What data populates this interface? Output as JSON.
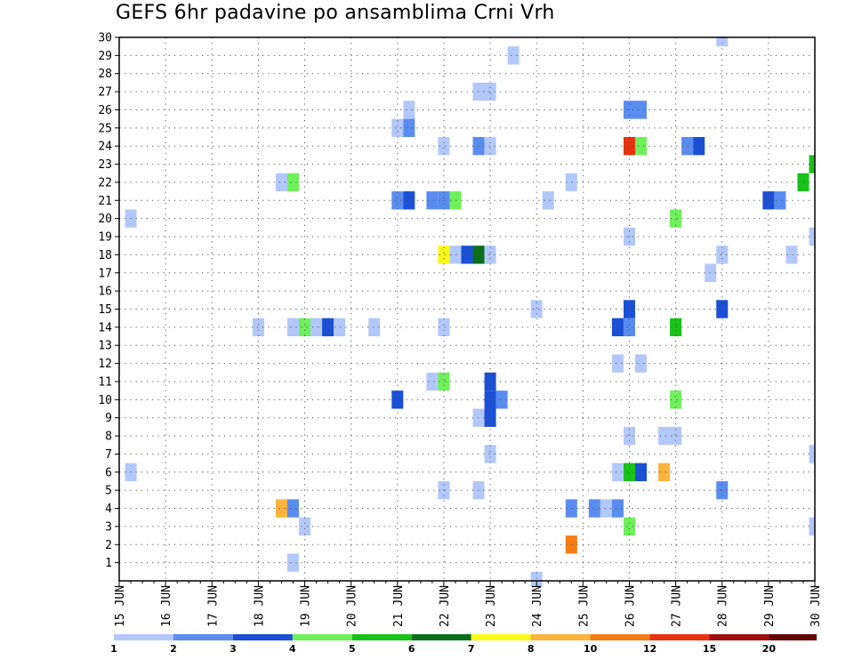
{
  "chart_data": {
    "type": "heatmap",
    "title": "GEFS 6hr padavine po ansamblima Crni Vrh",
    "xlabel": "",
    "ylabel": "",
    "x_tick_labels": [
      "15 JUN",
      "16 JUN",
      "17 JUN",
      "18 JUN",
      "19 JUN",
      "20 JUN",
      "21 JUN",
      "22 JUN",
      "23 JUN",
      "24 JUN",
      "25 JUN",
      "26 JUN",
      "27 JUN",
      "28 JUN",
      "29 JUN",
      "30 JUN"
    ],
    "y_tick_labels": [
      "1",
      "2",
      "3",
      "4",
      "5",
      "6",
      "7",
      "8",
      "9",
      "10",
      "11",
      "12",
      "13",
      "14",
      "15",
      "16",
      "17",
      "18",
      "19",
      "20",
      "21",
      "22",
      "23",
      "24",
      "25",
      "26",
      "27",
      "28",
      "29",
      "30"
    ],
    "x_range_days": [
      15,
      30
    ],
    "y_range": [
      0,
      30
    ],
    "grid": true,
    "legend": "bottom colorbar",
    "colorbar": {
      "labels": [
        "1",
        "2",
        "3",
        "4",
        "5",
        "6",
        "7",
        "8",
        "10",
        "12",
        "15",
        "20"
      ],
      "colors": [
        "#b3c8fa",
        "#5a8cf0",
        "#1a4fd6",
        "#6ef05a",
        "#19c219",
        "#0a6e1e",
        "#fafa19",
        "#fab43c",
        "#f57d14",
        "#e6320f",
        "#a00f0f",
        "#640505"
      ]
    },
    "step_hours": 6,
    "cells": [
      {
        "m": 30,
        "d": 28.0,
        "c": 0
      },
      {
        "m": 29,
        "d": 23.5,
        "c": 0
      },
      {
        "m": 27,
        "d": 22.75,
        "c": 0
      },
      {
        "m": 27,
        "d": 23.0,
        "c": 0
      },
      {
        "m": 26,
        "d": 21.25,
        "c": 0
      },
      {
        "m": 26,
        "d": 26.0,
        "c": 1
      },
      {
        "m": 26,
        "d": 26.25,
        "c": 1
      },
      {
        "m": 25,
        "d": 21.0,
        "c": 0
      },
      {
        "m": 25,
        "d": 21.25,
        "c": 1
      },
      {
        "m": 24,
        "d": 22.0,
        "c": 0
      },
      {
        "m": 24,
        "d": 22.75,
        "c": 1
      },
      {
        "m": 24,
        "d": 23.0,
        "c": 0
      },
      {
        "m": 24,
        "d": 26.0,
        "c": 9
      },
      {
        "m": 24,
        "d": 26.25,
        "c": 3
      },
      {
        "m": 24,
        "d": 27.25,
        "c": 1
      },
      {
        "m": 24,
        "d": 27.5,
        "c": 2
      },
      {
        "m": 23,
        "d": 30.0,
        "c": 4
      },
      {
        "m": 22,
        "d": 18.5,
        "c": 0
      },
      {
        "m": 22,
        "d": 18.75,
        "c": 3
      },
      {
        "m": 22,
        "d": 24.75,
        "c": 0
      },
      {
        "m": 22,
        "d": 29.75,
        "c": 4
      },
      {
        "m": 21,
        "d": 21.0,
        "c": 1
      },
      {
        "m": 21,
        "d": 21.25,
        "c": 2
      },
      {
        "m": 21,
        "d": 21.75,
        "c": 1
      },
      {
        "m": 21,
        "d": 22.0,
        "c": 1
      },
      {
        "m": 21,
        "d": 22.25,
        "c": 3
      },
      {
        "m": 21,
        "d": 24.25,
        "c": 0
      },
      {
        "m": 21,
        "d": 29.0,
        "c": 2
      },
      {
        "m": 21,
        "d": 29.25,
        "c": 1
      },
      {
        "m": 20,
        "d": 15.25,
        "c": 0
      },
      {
        "m": 20,
        "d": 27.0,
        "c": 3
      },
      {
        "m": 19,
        "d": 26.0,
        "c": 0
      },
      {
        "m": 19,
        "d": 30.0,
        "c": 0
      },
      {
        "m": 18,
        "d": 22.0,
        "c": 6
      },
      {
        "m": 18,
        "d": 22.25,
        "c": 0
      },
      {
        "m": 18,
        "d": 22.5,
        "c": 2
      },
      {
        "m": 18,
        "d": 22.75,
        "c": 5
      },
      {
        "m": 18,
        "d": 23.0,
        "c": 0
      },
      {
        "m": 18,
        "d": 28.0,
        "c": 0
      },
      {
        "m": 18,
        "d": 29.5,
        "c": 0
      },
      {
        "m": 17,
        "d": 27.75,
        "c": 0
      },
      {
        "m": 15,
        "d": 24.0,
        "c": 0
      },
      {
        "m": 15,
        "d": 26.0,
        "c": 2
      },
      {
        "m": 15,
        "d": 28.0,
        "c": 2
      },
      {
        "m": 14,
        "d": 18.0,
        "c": 0
      },
      {
        "m": 14,
        "d": 18.75,
        "c": 0
      },
      {
        "m": 14,
        "d": 19.0,
        "c": 3
      },
      {
        "m": 14,
        "d": 19.25,
        "c": 0
      },
      {
        "m": 14,
        "d": 19.5,
        "c": 2
      },
      {
        "m": 14,
        "d": 19.75,
        "c": 0
      },
      {
        "m": 14,
        "d": 20.5,
        "c": 0
      },
      {
        "m": 14,
        "d": 22.0,
        "c": 0
      },
      {
        "m": 14,
        "d": 25.75,
        "c": 2
      },
      {
        "m": 14,
        "d": 26.0,
        "c": 1
      },
      {
        "m": 14,
        "d": 27.0,
        "c": 4
      },
      {
        "m": 12,
        "d": 25.75,
        "c": 0
      },
      {
        "m": 12,
        "d": 26.25,
        "c": 0
      },
      {
        "m": 11,
        "d": 21.75,
        "c": 0
      },
      {
        "m": 11,
        "d": 22.0,
        "c": 3
      },
      {
        "m": 11,
        "d": 23.0,
        "c": 2
      },
      {
        "m": 10,
        "d": 21.0,
        "c": 2
      },
      {
        "m": 10,
        "d": 23.0,
        "c": 2
      },
      {
        "m": 10,
        "d": 23.25,
        "c": 1
      },
      {
        "m": 10,
        "d": 27.0,
        "c": 3
      },
      {
        "m": 9,
        "d": 22.75,
        "c": 0
      },
      {
        "m": 9,
        "d": 23.0,
        "c": 2
      },
      {
        "m": 8,
        "d": 26.0,
        "c": 0
      },
      {
        "m": 8,
        "d": 26.75,
        "c": 0
      },
      {
        "m": 8,
        "d": 27.0,
        "c": 0
      },
      {
        "m": 7,
        "d": 23.0,
        "c": 0
      },
      {
        "m": 7,
        "d": 30.0,
        "c": 0
      },
      {
        "m": 6,
        "d": 15.25,
        "c": 0
      },
      {
        "m": 6,
        "d": 25.75,
        "c": 0
      },
      {
        "m": 6,
        "d": 26.0,
        "c": 4
      },
      {
        "m": 6,
        "d": 26.25,
        "c": 2
      },
      {
        "m": 6,
        "d": 26.75,
        "c": 7
      },
      {
        "m": 5,
        "d": 22.0,
        "c": 0
      },
      {
        "m": 5,
        "d": 22.75,
        "c": 0
      },
      {
        "m": 5,
        "d": 28.0,
        "c": 1
      },
      {
        "m": 4,
        "d": 18.5,
        "c": 7
      },
      {
        "m": 4,
        "d": 18.75,
        "c": 1
      },
      {
        "m": 4,
        "d": 24.75,
        "c": 1
      },
      {
        "m": 4,
        "d": 25.25,
        "c": 1
      },
      {
        "m": 4,
        "d": 25.5,
        "c": 0
      },
      {
        "m": 4,
        "d": 25.75,
        "c": 1
      },
      {
        "m": 3,
        "d": 19.0,
        "c": 0
      },
      {
        "m": 3,
        "d": 26.0,
        "c": 3
      },
      {
        "m": 3,
        "d": 30.0,
        "c": 0
      },
      {
        "m": 2,
        "d": 24.75,
        "c": 8
      },
      {
        "m": 1,
        "d": 18.75,
        "c": 0
      },
      {
        "m": 0,
        "d": 24.0,
        "c": 0
      }
    ]
  }
}
